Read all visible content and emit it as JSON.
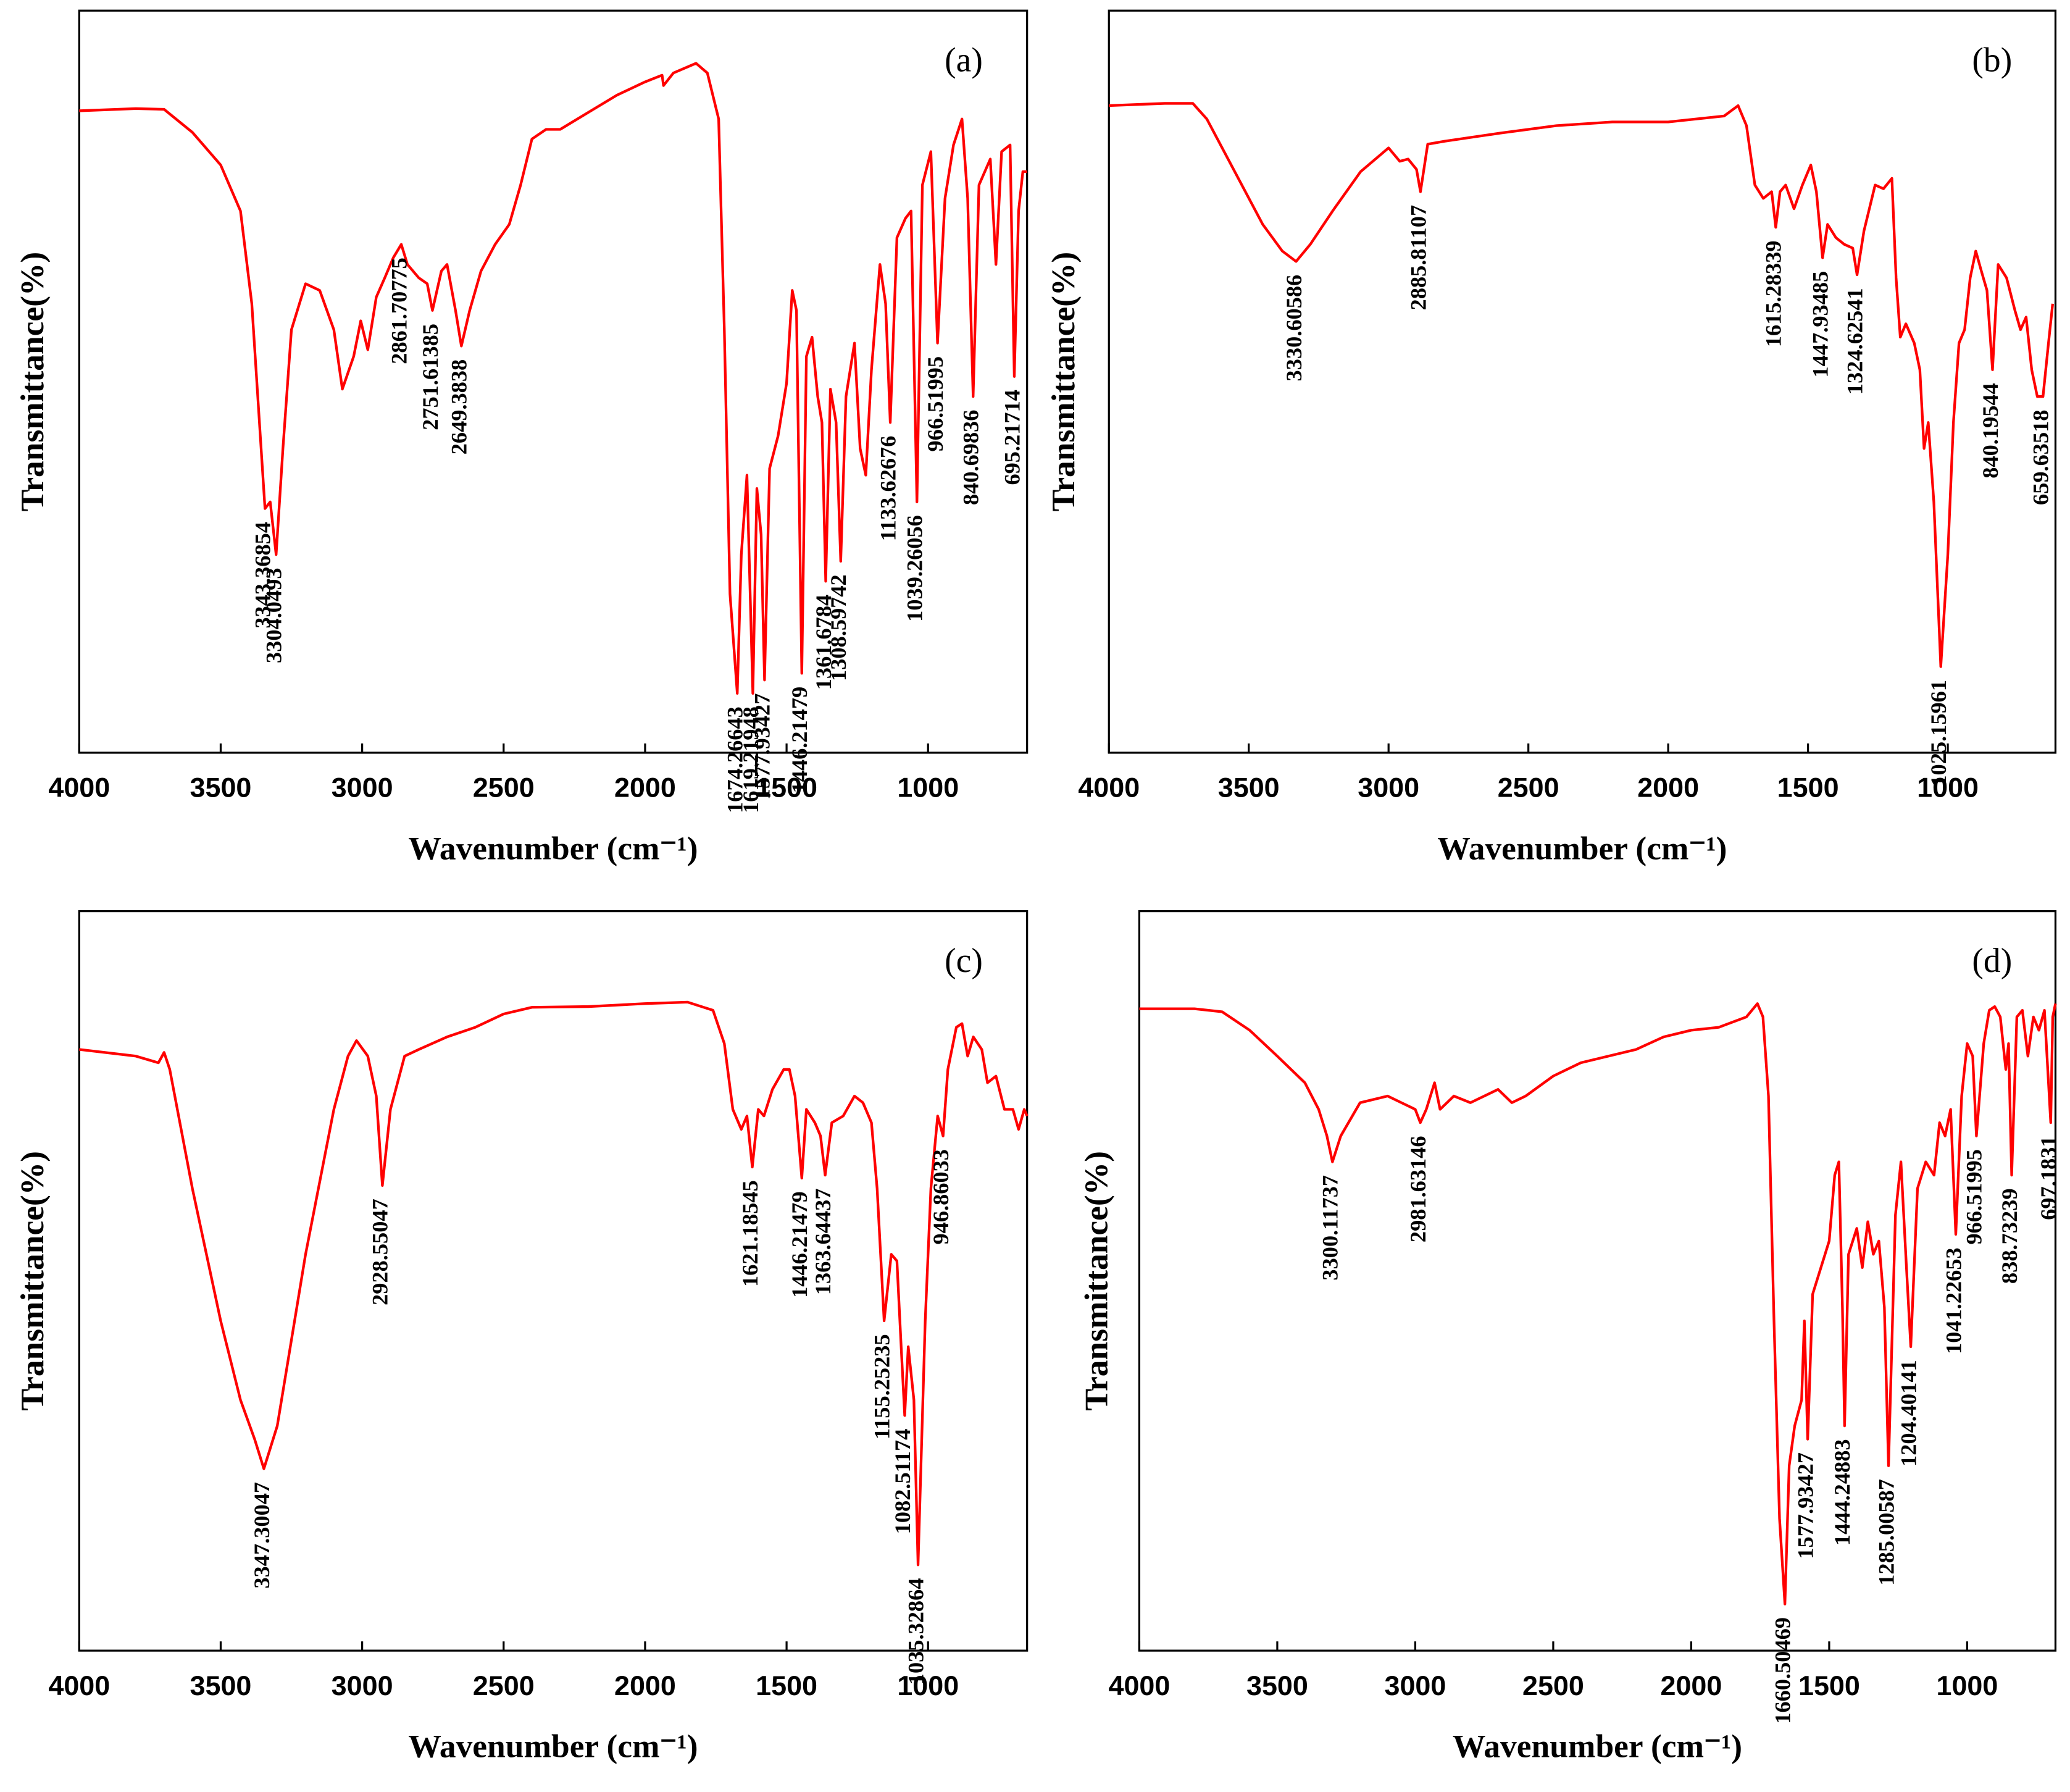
{
  "chart_data": [
    {
      "type": "line",
      "panel_label": "(a)",
      "xlabel": "Wavenumber (cm⁻¹)",
      "ylabel": "Transmittance(%)",
      "color": "#ff0000",
      "xlim": [
        4000,
        650
      ],
      "xticks": [
        4000,
        3500,
        3000,
        2500,
        2000,
        1500,
        1000
      ],
      "ylim": [
        0,
        100
      ],
      "x": [
        4000,
        3800,
        3700,
        3600,
        3500,
        3430,
        3390,
        3360,
        3343.36854,
        3325,
        3304.0493,
        3280,
        3250,
        3200,
        3150,
        3100,
        3070,
        3030,
        3005,
        2980,
        2950,
        2920,
        2890,
        2861.70775,
        2840,
        2800,
        2770,
        2751.61385,
        2720,
        2700,
        2670,
        2649.3838,
        2620,
        2580,
        2530,
        2480,
        2440,
        2400,
        2350,
        2300,
        2200,
        2100,
        2000,
        1940,
        1935,
        1900,
        1820,
        1780,
        1740,
        1720,
        1700,
        1674.26643,
        1660,
        1640,
        1619.21948,
        1605,
        1590,
        1577.93427,
        1560,
        1530,
        1500,
        1480,
        1465,
        1446.21479,
        1430,
        1410,
        1390,
        1375,
        1361.6784,
        1345,
        1325,
        1308.59742,
        1290,
        1260,
        1240,
        1220,
        1200,
        1170,
        1150,
        1133.62676,
        1110,
        1080,
        1060,
        1039.26056,
        1020,
        990,
        966.51995,
        940,
        910,
        880,
        860,
        840.69836,
        820,
        780,
        760,
        740,
        710,
        695.21714,
        680,
        665,
        650
      ],
      "values": [
        86.5,
        86.8,
        86.7,
        83.6,
        79.2,
        73,
        60.5,
        42.7,
        32.9,
        33.8,
        26.7,
        41,
        57,
        63.2,
        62.3,
        57,
        49,
        53.4,
        58.2,
        54.3,
        61.4,
        64,
        66.7,
        68.5,
        65.8,
        64,
        63.2,
        59.6,
        64.9,
        65.8,
        59.6,
        54.8,
        59.6,
        64.9,
        68.5,
        71.2,
        76.5,
        82.7,
        84,
        84,
        86.3,
        88.6,
        90.4,
        91.3,
        89.9,
        91.6,
        92.9,
        91.6,
        85.4,
        57,
        21.4,
        8,
        26.7,
        37.4,
        8,
        35.6,
        29.4,
        9.8,
        38.3,
        42.7,
        49.8,
        62.3,
        59.6,
        10.7,
        53.4,
        56,
        48,
        44.5,
        23.1,
        49,
        44.5,
        25.8,
        48,
        55.2,
        41,
        37.4,
        51.6,
        65.8,
        60.5,
        44.5,
        69.4,
        72,
        73,
        33.8,
        76.5,
        81,
        55.2,
        74.7,
        81.9,
        85.4,
        74.7,
        48,
        76.5,
        80,
        65.8,
        81,
        81.9,
        50.7,
        73,
        78.3,
        78.3
      ],
      "peaks": [
        3343.36854,
        3304.0493,
        2861.70775,
        2751.61385,
        2649.3838,
        1674.26643,
        1619.21948,
        1577.93427,
        1446.21479,
        1361.6784,
        1308.59742,
        1133.62676,
        1039.26056,
        966.51995,
        840.69836,
        695.21714
      ]
    },
    {
      "type": "line",
      "panel_label": "(b)",
      "xlabel": "Wavenumber (cm⁻¹)",
      "ylabel": "Transmittance(%)",
      "color": "#ff0000",
      "xlim": [
        4000,
        615
      ],
      "xticks": [
        4000,
        3500,
        3000,
        2500,
        2000,
        1500,
        1000
      ],
      "ylim": [
        0,
        100
      ],
      "x": [
        4000,
        3800,
        3700,
        3650,
        3550,
        3450,
        3380,
        3330.60586,
        3280,
        3200,
        3100,
        3000,
        2960,
        2930,
        2900,
        2885.81107,
        2860,
        2800,
        2600,
        2400,
        2200,
        2000,
        1800,
        1750,
        1720,
        1690,
        1660,
        1630,
        1615.28339,
        1600,
        1580,
        1550,
        1520,
        1490,
        1470,
        1447.93485,
        1430,
        1400,
        1370,
        1340,
        1324.62541,
        1300,
        1260,
        1230,
        1200,
        1185,
        1170,
        1150,
        1120,
        1100,
        1085,
        1070,
        1050,
        1025.15961,
        1000,
        980,
        960,
        940,
        920,
        900,
        880,
        860,
        840.19544,
        820,
        790,
        760,
        740,
        720,
        700,
        680,
        659.63518,
        640,
        625
      ],
      "values": [
        87.2,
        87.5,
        87.5,
        85.4,
        78.3,
        71.2,
        67.6,
        66.2,
        68.5,
        73,
        78.3,
        81.5,
        79.7,
        80,
        78.6,
        75.6,
        82,
        82.4,
        83.5,
        84.5,
        85,
        85,
        85.8,
        87.2,
        84.5,
        76.5,
        74.7,
        75.6,
        70.8,
        75.6,
        76.5,
        73.3,
        76.5,
        79.2,
        75.6,
        66.7,
        71.2,
        69.4,
        68.5,
        68,
        64.4,
        70.3,
        76.5,
        76,
        77.4,
        64,
        56,
        57.8,
        55.2,
        51.6,
        41,
        44.5,
        33.8,
        11.6,
        26.7,
        44.5,
        55.2,
        57,
        64,
        67.6,
        64.9,
        62.3,
        51.6,
        65.8,
        64,
        59.6,
        57,
        58.7,
        51.6,
        48,
        48,
        55.2,
        60.5
      ],
      "peaks": [
        3330.60586,
        2885.81107,
        1615.28339,
        1447.93485,
        1324.62541,
        1025.15961,
        840.19544,
        659.63518
      ]
    },
    {
      "type": "line",
      "panel_label": "(c)",
      "xlabel": "Wavenumber (cm⁻¹)",
      "ylabel": "Transmittance(%)",
      "color": "#ff0000",
      "xlim": [
        4000,
        650
      ],
      "xticks": [
        4000,
        3500,
        3000,
        2500,
        2000,
        1500,
        1000
      ],
      "ylim": [
        0,
        100
      ],
      "x": [
        4000,
        3800,
        3720,
        3700,
        3680,
        3600,
        3500,
        3430,
        3380,
        3347.30047,
        3300,
        3200,
        3100,
        3050,
        3020,
        2980,
        2950,
        2928.55047,
        2900,
        2850,
        2800,
        2700,
        2600,
        2500,
        2400,
        2200,
        2000,
        1850,
        1760,
        1720,
        1690,
        1660,
        1640,
        1621.18545,
        1600,
        1580,
        1550,
        1510,
        1490,
        1470,
        1446.21479,
        1430,
        1400,
        1380,
        1363.64437,
        1340,
        1300,
        1260,
        1230,
        1200,
        1180,
        1155.25235,
        1130,
        1110,
        1095,
        1082.51174,
        1070,
        1050,
        1035.32864,
        1010,
        990,
        966,
        946.86033,
        930,
        900,
        880,
        860,
        840,
        810,
        790,
        760,
        730,
        700,
        680,
        660,
        650
      ],
      "values": [
        81.3,
        80.4,
        79.5,
        80.9,
        78.6,
        62.5,
        44.6,
        33.9,
        28.6,
        24.6,
        30.4,
        53.6,
        73.2,
        80.4,
        82.5,
        80.4,
        75,
        62.9,
        73.2,
        80.4,
        81.3,
        83,
        84.3,
        86.1,
        87,
        87.1,
        87.5,
        87.7,
        86.6,
        82.1,
        73.2,
        70.5,
        72.3,
        65.4,
        73.2,
        72.3,
        75.9,
        78.6,
        78.6,
        75,
        63.9,
        73.2,
        71.4,
        69.6,
        64.3,
        71.4,
        72.3,
        75,
        74.1,
        71.4,
        62.5,
        44.6,
        53.6,
        52.7,
        41.1,
        31.8,
        41.1,
        33.9,
        11.6,
        44.6,
        62.5,
        72.3,
        69.6,
        78.6,
        84.3,
        84.8,
        80.4,
        83,
        81.3,
        76.8,
        77.7,
        73.2,
        73.2,
        70.5,
        73.2,
        72.3
      ],
      "peaks": [
        3347.30047,
        2928.55047,
        1621.18545,
        1446.21479,
        1363.64437,
        1155.25235,
        1082.51174,
        1035.32864,
        946.86033
      ]
    },
    {
      "type": "line",
      "panel_label": "(d)",
      "xlabel": "Wavenumber (cm⁻¹)",
      "ylabel": "Transmittance(%)",
      "color": "#ff0000",
      "xlim": [
        4000,
        680
      ],
      "xticks": [
        4000,
        3500,
        3000,
        2500,
        2000,
        1500,
        1000
      ],
      "ylim": [
        0,
        100
      ],
      "x": [
        4000,
        3800,
        3700,
        3600,
        3500,
        3400,
        3350,
        3320,
        3300.11737,
        3270,
        3200,
        3100,
        3050,
        3000,
        2981.63146,
        2960,
        2930,
        2910,
        2860,
        2800,
        2700,
        2650,
        2600,
        2500,
        2400,
        2300,
        2200,
        2100,
        2000,
        1900,
        1800,
        1760,
        1740,
        1720,
        1700,
        1680,
        1660.50469,
        1645,
        1625,
        1600,
        1590,
        1577.93427,
        1560,
        1530,
        1500,
        1480,
        1465,
        1452,
        1444.24883,
        1430,
        1400,
        1380,
        1360,
        1340,
        1320,
        1300,
        1285.00587,
        1260,
        1240,
        1220,
        1204.40141,
        1180,
        1150,
        1120,
        1100,
        1080,
        1060,
        1041.22653,
        1020,
        1000,
        980,
        966.51995,
        940,
        920,
        900,
        880,
        860,
        850,
        838.73239,
        820,
        800,
        780,
        760,
        740,
        720,
        697.1831,
        690,
        680
      ],
      "values": [
        86.8,
        86.8,
        86.4,
        83.9,
        80.4,
        76.8,
        73.2,
        69.6,
        66.1,
        69.6,
        74.1,
        75,
        74.1,
        73.2,
        71.4,
        73.2,
        76.8,
        73.2,
        75,
        74.1,
        75.9,
        74.1,
        75,
        77.7,
        79.5,
        80.4,
        81.3,
        83,
        83.9,
        84.3,
        85.7,
        87.5,
        85.7,
        75,
        44.6,
        17.9,
        6.3,
        25,
        30.4,
        33.9,
        44.6,
        28.6,
        48.2,
        51.8,
        55.4,
        64.3,
        66.1,
        46.4,
        30.4,
        53.6,
        57.1,
        51.8,
        58,
        53.6,
        55.4,
        46.4,
        25,
        58.9,
        66.1,
        51.8,
        41.1,
        62.5,
        66.1,
        64.3,
        71.4,
        69.6,
        73.2,
        56.3,
        75,
        82.1,
        80.4,
        69.6,
        82.1,
        86.6,
        87.1,
        85.7,
        78.6,
        82.1,
        64.3,
        85.7,
        86.6,
        80.4,
        85.7,
        83.9,
        86.6,
        71.4,
        85.7,
        87.5
      ],
      "peaks": [
        3300.11737,
        2981.63146,
        1660.50469,
        1577.93427,
        1444.24883,
        1285.00587,
        1204.40141,
        1041.22653,
        966.51995,
        838.73239,
        697.1831
      ]
    }
  ]
}
